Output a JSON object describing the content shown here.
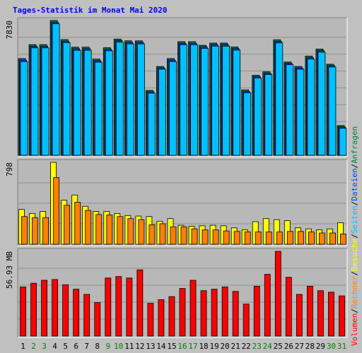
{
  "title": "Tages-Statistik im Monat Mai 2020",
  "colors": {
    "background": "#c0c0c0",
    "panel": "#b8b8b8",
    "title": "#0000ff",
    "anfragen": "#008040",
    "dateien": "#0040ff",
    "seiten": "#00c0ff",
    "besuche": "#ffff00",
    "rechner": "#ff8000",
    "volumen": "#ff0000",
    "weekday_label": "#000000",
    "weekend_label": "#008000"
  },
  "chart_data": [
    {
      "type": "bar",
      "panel": "top",
      "max_label": "7830",
      "ylim": [
        0,
        7830
      ],
      "grid": true,
      "legend": "right-vertical",
      "series": [
        {
          "name": "Anfragen",
          "color": "#008040",
          "values": [
            5620,
            6430,
            6430,
            7830,
            6720,
            6280,
            6280,
            5590,
            6250,
            6750,
            6650,
            6650,
            3770,
            5160,
            5620,
            6600,
            6600,
            6390,
            6520,
            6520,
            6290,
            3800,
            4650,
            4850,
            6710,
            5420,
            5160,
            5760,
            6170,
            5290,
            1730
          ]
        },
        {
          "name": "Dateien",
          "color": "#0040ff",
          "values": [
            5530,
            6330,
            6330,
            7730,
            6630,
            6190,
            6190,
            5500,
            6160,
            6660,
            6560,
            6560,
            3690,
            5080,
            5530,
            6510,
            6510,
            6300,
            6430,
            6430,
            6200,
            3710,
            4570,
            4770,
            6620,
            5340,
            5080,
            5670,
            6080,
            5210,
            1650
          ]
        },
        {
          "name": "Seiten",
          "color": "#00c0ff",
          "values": [
            5440,
            6240,
            6240,
            7640,
            6540,
            6100,
            6100,
            5410,
            6070,
            6570,
            6470,
            6470,
            3610,
            5000,
            5440,
            6420,
            6420,
            6210,
            6340,
            6340,
            6110,
            3630,
            4490,
            4690,
            6530,
            5260,
            5000,
            5590,
            5990,
            5130,
            1570
          ]
        }
      ]
    },
    {
      "type": "bar",
      "panel": "middle",
      "max_label": "798",
      "ylim": [
        0,
        798
      ],
      "grid": true,
      "legend": "right-vertical",
      "series": [
        {
          "name": "Besuche",
          "color": "#ffff00",
          "values": [
            340,
            300,
            320,
            798,
            430,
            480,
            370,
            320,
            320,
            300,
            280,
            275,
            270,
            225,
            250,
            185,
            175,
            180,
            185,
            180,
            160,
            140,
            220,
            250,
            240,
            230,
            160,
            150,
            140,
            150,
            210
          ]
        },
        {
          "name": "Rechner",
          "color": "#ff8000",
          "values": [
            270,
            260,
            260,
            650,
            380,
            410,
            330,
            290,
            285,
            270,
            250,
            240,
            190,
            200,
            170,
            170,
            150,
            140,
            140,
            130,
            125,
            120,
            120,
            120,
            120,
            125,
            125,
            120,
            110,
            110,
            100
          ]
        }
      ]
    },
    {
      "type": "bar",
      "panel": "bottom",
      "max_label": "56.93 MB",
      "ylim": [
        0,
        56.93
      ],
      "grid": true,
      "legend": "right-vertical",
      "series": [
        {
          "name": "Volumen",
          "color": "#ff0000",
          "values": [
            33,
            35.5,
            37.5,
            38,
            34.5,
            31.5,
            28,
            22.5,
            39,
            40,
            39,
            44.5,
            22,
            24.5,
            26.5,
            32,
            37.5,
            30.5,
            31.5,
            33,
            30,
            21.5,
            33.5,
            41.5,
            56.93,
            39.5,
            28,
            33.5,
            30.5,
            29.5,
            27
          ]
        }
      ]
    }
  ],
  "x_labels": [
    "1",
    "2",
    "3",
    "4",
    "5",
    "6",
    "7",
    "8",
    "9",
    "10",
    "11",
    "12",
    "13",
    "14",
    "15",
    "16",
    "17",
    "18",
    "19",
    "20",
    "21",
    "22",
    "23",
    "24",
    "25",
    "26",
    "27",
    "28",
    "29",
    "30",
    "31"
  ],
  "weekend_days": [
    2,
    3,
    9,
    10,
    16,
    17,
    23,
    24,
    30,
    31
  ],
  "legend": {
    "top": [
      {
        "text": "Anfragen",
        "color": "#008040"
      },
      {
        "text": "/",
        "color": "#000000"
      },
      {
        "text": "Dateien",
        "color": "#0040ff"
      },
      {
        "text": "/",
        "color": "#000000"
      },
      {
        "text": "Seiten",
        "color": "#00c0ff"
      },
      {
        "text": "/",
        "color": "#000000"
      },
      {
        "text": "Besuche",
        "color": "#ffff00"
      },
      {
        "text": "/",
        "color": "#000000"
      },
      {
        "text": "Rechner",
        "color": "#ff8000"
      },
      {
        "text": "/",
        "color": "#000000"
      },
      {
        "text": "Volumen",
        "color": "#ff0000"
      }
    ]
  }
}
